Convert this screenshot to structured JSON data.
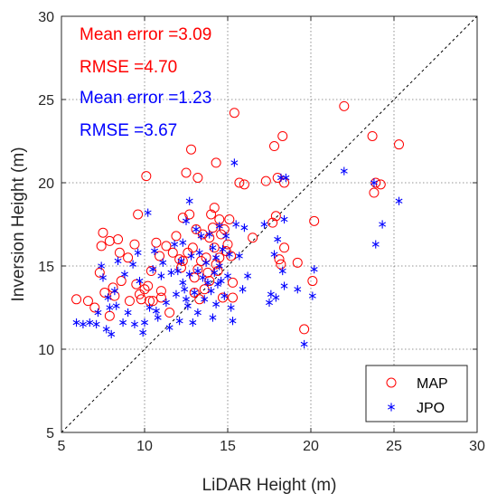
{
  "chart_data": {
    "type": "scatter",
    "xlabel": "LiDAR Height (m)",
    "ylabel": "Inversion Height (m)",
    "xlim": [
      5,
      30
    ],
    "ylim": [
      5,
      30
    ],
    "xticks": [
      "5",
      "10",
      "15",
      "20",
      "25",
      "30"
    ],
    "yticks": [
      "5",
      "10",
      "15",
      "20",
      "25",
      "30"
    ],
    "grid": true,
    "reference_line": "y = x (dashed)",
    "legend_position": "bottom-right",
    "annotations": [
      {
        "text": "Mean error =3.09",
        "color": "#ff0000"
      },
      {
        "text": "RMSE =4.70",
        "color": "#ff0000"
      },
      {
        "text": "Mean error =1.23",
        "color": "#0000ff"
      },
      {
        "text": "RMSE =3.67",
        "color": "#0000ff"
      }
    ],
    "series": [
      {
        "name": "MAP",
        "marker": "circle",
        "color": "#ff0000",
        "points": [
          [
            5.9,
            13.0
          ],
          [
            6.6,
            12.9
          ],
          [
            7.0,
            12.5
          ],
          [
            7.3,
            14.6
          ],
          [
            7.4,
            16.2
          ],
          [
            7.5,
            17.0
          ],
          [
            7.6,
            13.4
          ],
          [
            7.9,
            16.5
          ],
          [
            7.9,
            12.0
          ],
          [
            8.1,
            13.7
          ],
          [
            8.2,
            13.2
          ],
          [
            8.4,
            16.6
          ],
          [
            8.5,
            15.8
          ],
          [
            8.6,
            14.1
          ],
          [
            9.0,
            15.5
          ],
          [
            9.1,
            12.9
          ],
          [
            9.4,
            16.3
          ],
          [
            9.5,
            13.9
          ],
          [
            9.6,
            18.1
          ],
          [
            9.7,
            13.3
          ],
          [
            9.8,
            13.0
          ],
          [
            10.0,
            13.6
          ],
          [
            10.1,
            20.4
          ],
          [
            10.2,
            13.8
          ],
          [
            10.3,
            12.9
          ],
          [
            10.4,
            14.7
          ],
          [
            10.5,
            12.9
          ],
          [
            10.7,
            16.4
          ],
          [
            10.9,
            15.6
          ],
          [
            11.0,
            13.5
          ],
          [
            11.0,
            13.1
          ],
          [
            11.3,
            16.2
          ],
          [
            11.5,
            12.2
          ],
          [
            11.7,
            15.8
          ],
          [
            11.9,
            16.8
          ],
          [
            12.1,
            15.4
          ],
          [
            12.2,
            14.9
          ],
          [
            12.3,
            17.9
          ],
          [
            12.3,
            15.3
          ],
          [
            12.5,
            20.6
          ],
          [
            12.6,
            15.8
          ],
          [
            12.7,
            18.1
          ],
          [
            12.8,
            22.0
          ],
          [
            12.9,
            16.1
          ],
          [
            13.0,
            14.3
          ],
          [
            13.0,
            13.4
          ],
          [
            13.1,
            17.2
          ],
          [
            13.2,
            20.3
          ],
          [
            13.2,
            14.8
          ],
          [
            13.3,
            13.0
          ],
          [
            13.4,
            15.3
          ],
          [
            13.5,
            16.9
          ],
          [
            13.6,
            13.6
          ],
          [
            13.7,
            15.5
          ],
          [
            13.8,
            14.6
          ],
          [
            13.9,
            16.7
          ],
          [
            13.9,
            14.1
          ],
          [
            14.0,
            18.1
          ],
          [
            14.1,
            17.3
          ],
          [
            14.2,
            18.5
          ],
          [
            14.2,
            16.1
          ],
          [
            14.3,
            21.2
          ],
          [
            14.3,
            15.1
          ],
          [
            14.4,
            14.7
          ],
          [
            14.5,
            17.8
          ],
          [
            14.5,
            15.5
          ],
          [
            14.6,
            16.9
          ],
          [
            14.7,
            13.1
          ],
          [
            14.8,
            17.2
          ],
          [
            14.9,
            15.9
          ],
          [
            15.0,
            16.3
          ],
          [
            15.1,
            17.8
          ],
          [
            15.2,
            15.6
          ],
          [
            15.3,
            14.0
          ],
          [
            15.3,
            13.1
          ],
          [
            15.4,
            24.2
          ],
          [
            15.7,
            20.0
          ],
          [
            16.0,
            19.9
          ],
          [
            16.5,
            16.7
          ],
          [
            17.3,
            20.1
          ],
          [
            17.7,
            17.6
          ],
          [
            17.8,
            22.2
          ],
          [
            17.9,
            18.0
          ],
          [
            18.0,
            20.3
          ],
          [
            18.1,
            15.4
          ],
          [
            18.2,
            15.1
          ],
          [
            18.3,
            22.8
          ],
          [
            18.4,
            16.1
          ],
          [
            18.4,
            20.0
          ],
          [
            19.2,
            15.2
          ],
          [
            19.6,
            11.2
          ],
          [
            20.1,
            14.1
          ],
          [
            20.2,
            17.7
          ],
          [
            22.0,
            24.6
          ],
          [
            23.7,
            22.8
          ],
          [
            23.8,
            19.4
          ],
          [
            23.9,
            20.0
          ],
          [
            24.2,
            19.9
          ],
          [
            25.3,
            22.3
          ]
        ]
      },
      {
        "name": "JPO",
        "marker": "asterisk",
        "color": "#0000ff",
        "points": [
          [
            5.9,
            11.6
          ],
          [
            6.3,
            11.5
          ],
          [
            6.7,
            11.6
          ],
          [
            7.1,
            11.5
          ],
          [
            7.2,
            12.2
          ],
          [
            7.4,
            15.0
          ],
          [
            7.5,
            14.3
          ],
          [
            7.7,
            11.2
          ],
          [
            7.8,
            13.1
          ],
          [
            7.9,
            12.5
          ],
          [
            8.0,
            10.9
          ],
          [
            8.2,
            13.5
          ],
          [
            8.3,
            12.6
          ],
          [
            8.4,
            15.3
          ],
          [
            8.7,
            11.6
          ],
          [
            8.8,
            14.5
          ],
          [
            9.0,
            12.2
          ],
          [
            9.3,
            15.1
          ],
          [
            9.4,
            11.5
          ],
          [
            9.6,
            15.8
          ],
          [
            9.7,
            14.1
          ],
          [
            9.9,
            11.0
          ],
          [
            10.0,
            11.6
          ],
          [
            10.2,
            18.2
          ],
          [
            10.3,
            12.5
          ],
          [
            10.5,
            14.8
          ],
          [
            10.6,
            15.9
          ],
          [
            10.7,
            12.3
          ],
          [
            10.8,
            11.9
          ],
          [
            11.0,
            14.4
          ],
          [
            11.1,
            15.2
          ],
          [
            11.3,
            12.8
          ],
          [
            11.5,
            11.3
          ],
          [
            11.6,
            14.6
          ],
          [
            11.8,
            16.3
          ],
          [
            11.9,
            13.3
          ],
          [
            12.0,
            14.7
          ],
          [
            12.1,
            11.7
          ],
          [
            12.2,
            15.3
          ],
          [
            12.3,
            14.0
          ],
          [
            12.3,
            16.4
          ],
          [
            12.4,
            13.6
          ],
          [
            12.5,
            13.0
          ],
          [
            12.5,
            17.7
          ],
          [
            12.6,
            12.6
          ],
          [
            12.7,
            14.5
          ],
          [
            12.7,
            18.9
          ],
          [
            12.8,
            15.6
          ],
          [
            12.9,
            11.6
          ],
          [
            13.0,
            13.4
          ],
          [
            13.1,
            17.2
          ],
          [
            13.2,
            14.7
          ],
          [
            13.2,
            12.2
          ],
          [
            13.3,
            15.8
          ],
          [
            13.4,
            16.8
          ],
          [
            13.5,
            14.3
          ],
          [
            13.6,
            13.0
          ],
          [
            13.7,
            15.2
          ],
          [
            13.8,
            14.0
          ],
          [
            13.9,
            16.9
          ],
          [
            14.0,
            13.5
          ],
          [
            14.1,
            11.9
          ],
          [
            14.1,
            16.1
          ],
          [
            14.2,
            14.6
          ],
          [
            14.3,
            15.5
          ],
          [
            14.3,
            12.7
          ],
          [
            14.4,
            13.9
          ],
          [
            14.5,
            17.4
          ],
          [
            14.5,
            15.0
          ],
          [
            14.6,
            14.1
          ],
          [
            14.7,
            16.0
          ],
          [
            14.8,
            13.2
          ],
          [
            14.9,
            16.8
          ],
          [
            15.0,
            14.4
          ],
          [
            15.1,
            15.7
          ],
          [
            15.2,
            12.5
          ],
          [
            15.3,
            11.7
          ],
          [
            15.4,
            21.2
          ],
          [
            15.5,
            17.5
          ],
          [
            15.7,
            15.6
          ],
          [
            15.9,
            13.6
          ],
          [
            16.0,
            17.3
          ],
          [
            16.2,
            14.4
          ],
          [
            17.2,
            17.5
          ],
          [
            17.5,
            12.8
          ],
          [
            17.6,
            13.3
          ],
          [
            17.8,
            15.7
          ],
          [
            17.9,
            13.1
          ],
          [
            18.0,
            16.6
          ],
          [
            18.2,
            20.3
          ],
          [
            18.3,
            14.7
          ],
          [
            18.4,
            17.8
          ],
          [
            18.4,
            13.8
          ],
          [
            18.5,
            20.3
          ],
          [
            19.2,
            13.6
          ],
          [
            19.6,
            10.3
          ],
          [
            20.1,
            13.2
          ],
          [
            20.2,
            14.8
          ],
          [
            22.0,
            20.7
          ],
          [
            23.8,
            20.0
          ],
          [
            23.9,
            16.3
          ],
          [
            24.3,
            17.5
          ],
          [
            25.3,
            18.9
          ]
        ]
      }
    ]
  }
}
